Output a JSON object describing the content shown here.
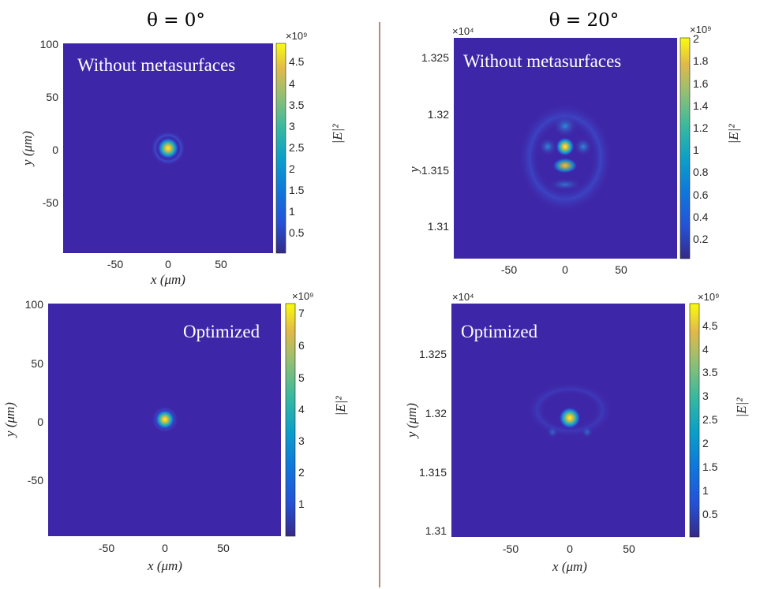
{
  "column_titles": [
    "θ = 0°",
    "θ = 20°"
  ],
  "colors": {
    "background": "#3e26a8",
    "divider": "#8b3a1a"
  },
  "chart_data": [
    {
      "type": "heatmap",
      "title": "Without metasurfaces",
      "xlabel": "x (μm)",
      "ylabel": "y (μm)",
      "x_ticks": [
        "-50",
        "0",
        "50"
      ],
      "y_ticks": [
        "100",
        "50",
        "0",
        "-50"
      ],
      "colorbar": {
        "label": "|E|²",
        "exponent": "×10⁹",
        "ticks": [
          "4.5",
          "4",
          "3.5",
          "3",
          "2.5",
          "2",
          "1.5",
          "1",
          "0.5"
        ]
      },
      "peak": {
        "x": 0,
        "y": 0,
        "value": 4.8
      }
    },
    {
      "type": "heatmap",
      "title": "Without metasurfaces",
      "xlabel": "",
      "ylabel": "y",
      "x_ticks": [
        "-50",
        "0",
        "50"
      ],
      "y_ticks": [
        "1.325",
        "1.32",
        "1.315",
        "1.31"
      ],
      "y_exponent": "×10⁴",
      "colorbar": {
        "label": "|E|²",
        "exponent": "×10⁹",
        "ticks": [
          "2",
          "1.8",
          "1.6",
          "1.4",
          "1.2",
          "1",
          "0.8",
          "0.6",
          "0.4",
          "0.2"
        ]
      },
      "peak": {
        "x": 0,
        "y": 13170,
        "value": 2.0
      }
    },
    {
      "type": "heatmap",
      "title": "Optimized",
      "xlabel": "x (μm)",
      "ylabel": "y (μm)",
      "x_ticks": [
        "-50",
        "0",
        "50"
      ],
      "y_ticks": [
        "100",
        "50",
        "0",
        "-50"
      ],
      "colorbar": {
        "label": "|E|²",
        "exponent": "×10⁹",
        "ticks": [
          "7",
          "6",
          "5",
          "4",
          "3",
          "2",
          "1"
        ]
      },
      "peak": {
        "x": 0,
        "y": 0,
        "value": 7.2
      }
    },
    {
      "type": "heatmap",
      "title": "Optimized",
      "xlabel": "x (μm)",
      "ylabel": "y (μm)",
      "x_ticks": [
        "-50",
        "0",
        "50"
      ],
      "y_ticks": [
        "1.325",
        "1.32",
        "1.315",
        "1.31"
      ],
      "y_exponent": "×10⁴",
      "colorbar": {
        "label": "|E|²",
        "exponent": "×10⁹",
        "ticks": [
          "4.5",
          "4",
          "3.5",
          "3",
          "2.5",
          "2",
          "1.5",
          "1",
          "0.5"
        ]
      },
      "peak": {
        "x": 0,
        "y": 13195,
        "value": 4.9
      }
    }
  ]
}
